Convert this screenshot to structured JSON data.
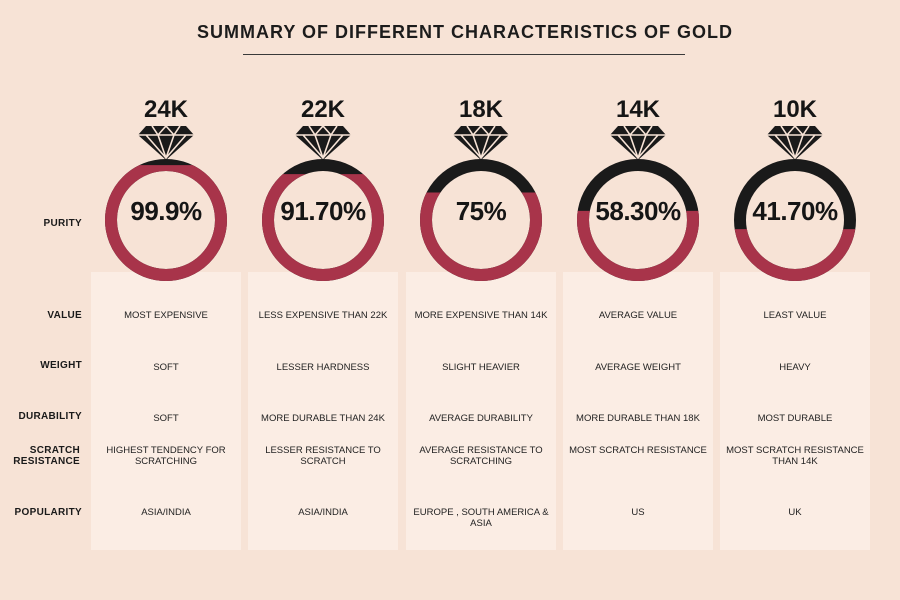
{
  "title": "SUMMARY OF DIFFERENT CHARACTERISTICS OF GOLD",
  "row_labels": {
    "purity": "PURITY",
    "value": "VALUE",
    "weight": "WEIGHT",
    "durability": "DURABILITY",
    "scratch": "SCRATCH RESISTANCE",
    "popularity": "POPULARITY"
  },
  "colors": {
    "gold_fill": "#a8344a",
    "alloy_fill": "#1a1a1a",
    "background": "#f7e3d6"
  },
  "columns": [
    {
      "karat": "24K",
      "purity": "99.9%",
      "purity_fraction": 0.999,
      "value": "MOST EXPENSIVE",
      "weight": "SOFT",
      "durability": "SOFT",
      "scratch": "HIGHEST TENDENCY FOR SCRATCHING",
      "popularity": "ASIA/INDIA"
    },
    {
      "karat": "22K",
      "purity": "91.70%",
      "purity_fraction": 0.917,
      "value": "LESS EXPENSIVE THAN 22K",
      "weight": "LESSER HARDNESS",
      "durability": "MORE DURABLE THAN 24K",
      "scratch": "LESSER RESISTANCE TO SCRATCH",
      "popularity": "ASIA/INDIA"
    },
    {
      "karat": "18K",
      "purity": "75%",
      "purity_fraction": 0.75,
      "value": "MORE EXPENSIVE THAN 14K",
      "weight": "SLIGHT HEAVIER",
      "durability": "AVERAGE DURABILITY",
      "scratch": "AVERAGE RESISTANCE TO SCRATCHING",
      "popularity": "EUROPE , SOUTH AMERICA & ASIA"
    },
    {
      "karat": "14K",
      "purity": "58.30%",
      "purity_fraction": 0.583,
      "value": "AVERAGE VALUE",
      "weight": "AVERAGE WEIGHT",
      "durability": "MORE DURABLE THAN 18K",
      "scratch": "MOST SCRATCH RESISTANCE",
      "popularity": "US"
    },
    {
      "karat": "10K",
      "purity": "41.70%",
      "purity_fraction": 0.417,
      "value": "LEAST VALUE",
      "weight": "HEAVY",
      "durability": "MOST DURABLE",
      "scratch": "MOST SCRATCH RESISTANCE THAN 14K",
      "popularity": "UK"
    }
  ]
}
